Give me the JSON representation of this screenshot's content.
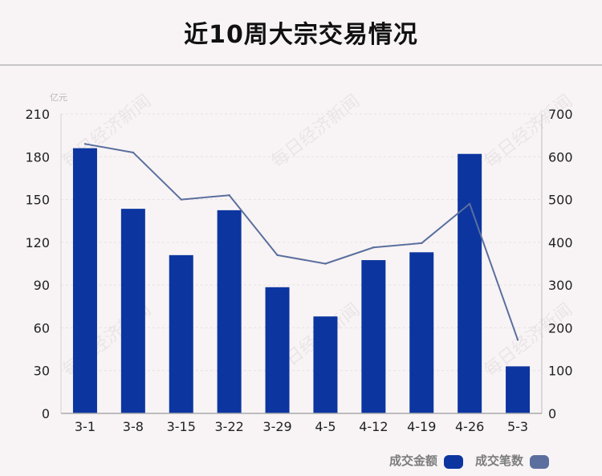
{
  "title": "近10周大宗交易情况",
  "unit_left": "亿元",
  "watermark_text": "每日经济新闻",
  "legend": {
    "bar_label": "成交金额",
    "line_label": "成交笔数"
  },
  "colors": {
    "bar": "#0c35a0",
    "line": "#5b6f9e",
    "axis_text": "#222222",
    "grid": "#e6e1e3"
  },
  "chart_data": {
    "type": "bar",
    "title": "近10周大宗交易情况",
    "categories": [
      "3-1",
      "3-8",
      "3-15",
      "3-22",
      "3-29",
      "4-5",
      "4-12",
      "4-19",
      "4-26",
      "5-3"
    ],
    "series": [
      {
        "name": "成交金额",
        "type": "bar",
        "axis": "left",
        "values": [
          186,
          143.5,
          111,
          142.5,
          88.5,
          68,
          107.5,
          113,
          182,
          33
        ]
      },
      {
        "name": "成交笔数",
        "type": "line",
        "axis": "right",
        "values": [
          630,
          610,
          500,
          510,
          370,
          350,
          388,
          398,
          490,
          172
        ]
      }
    ],
    "y_left": {
      "min": 0,
      "max": 210,
      "ticks": [
        0,
        30,
        60,
        90,
        120,
        150,
        180,
        210
      ],
      "unit": "亿元"
    },
    "y_right": {
      "min": 0,
      "max": 700,
      "ticks": [
        0,
        100,
        200,
        300,
        400,
        500,
        600,
        700
      ]
    },
    "grid": true,
    "legend_position": "bottom-right"
  }
}
